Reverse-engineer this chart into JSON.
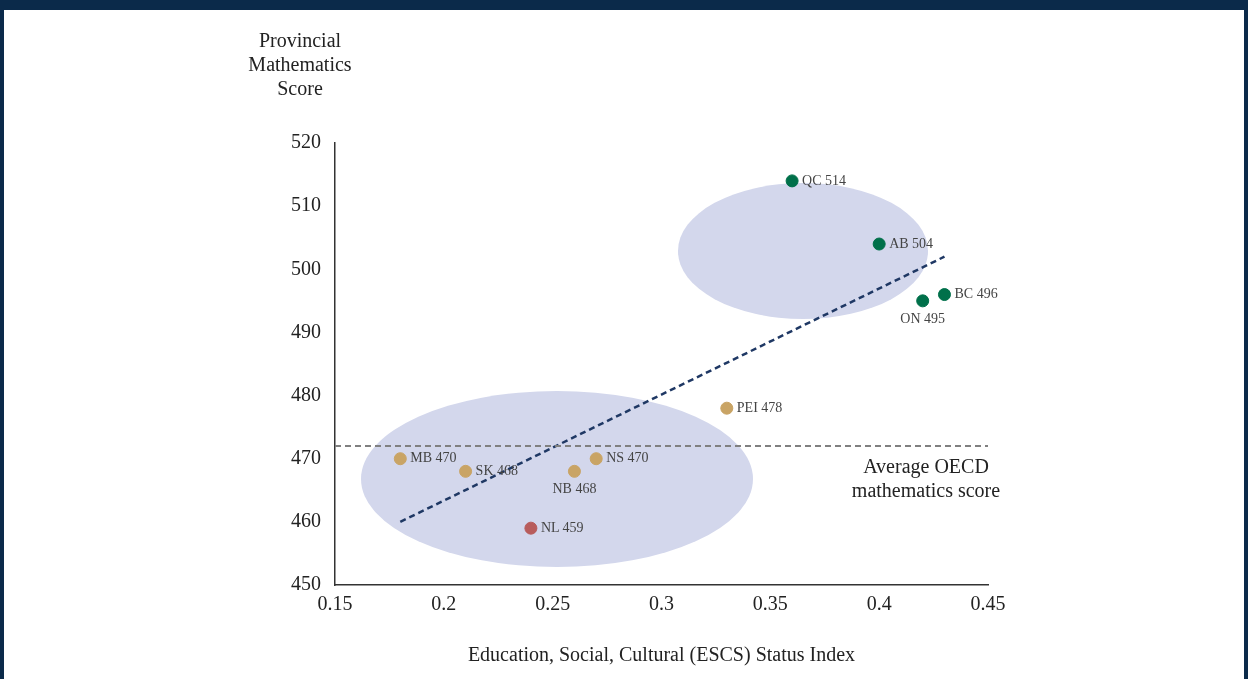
{
  "chart_data": {
    "type": "scatter",
    "xlabel": "Education, Social, Cultural (ESCS) Status Index",
    "ylabel": "Provincial Mathematics Score",
    "x": [
      0.36,
      0.4,
      0.43,
      0.42,
      0.33,
      0.27,
      0.26,
      0.21,
      0.18,
      0.24
    ],
    "values": [
      514,
      504,
      496,
      495,
      478,
      470,
      468,
      468,
      470,
      459
    ],
    "colors": [
      "#00704a",
      "#00704a",
      "#00704a",
      "#00704a",
      "#c9a465",
      "#c9a465",
      "#c9a465",
      "#c9a465",
      "#c9a465",
      "#b85c5c"
    ],
    "series": [
      {
        "type": "line",
        "x": [
          0.18,
          0.43
        ],
        "values": [
          460,
          502
        ],
        "color": "#1f3864",
        "line_style": "dashed",
        "marker": "none"
      }
    ],
    "annotations": [
      {
        "text": "QC 514",
        "x": 0.36,
        "y": 514
      },
      {
        "text": "AB 504",
        "x": 0.4,
        "y": 504
      },
      {
        "text": "BC 496",
        "x": 0.43,
        "y": 496
      },
      {
        "text": "ON 495",
        "x": 0.42,
        "y": 495
      },
      {
        "text": "PEI 478",
        "x": 0.33,
        "y": 478
      },
      {
        "text": "NS 470",
        "x": 0.27,
        "y": 470
      },
      {
        "text": "NB 468",
        "x": 0.26,
        "y": 468
      },
      {
        "text": "SK 468",
        "x": 0.21,
        "y": 468
      },
      {
        "text": "MB 470",
        "x": 0.18,
        "y": 470
      },
      {
        "text": "NL 459",
        "x": 0.24,
        "y": 459
      }
    ],
    "ref_lines": [
      {
        "axis": "y",
        "value": 472,
        "label": "Average OECD mathematics score",
        "color": "#808080",
        "line_style": "dashed"
      }
    ],
    "xlim": [
      0.15,
      0.45
    ],
    "xticks": [
      0.15,
      0.2,
      0.25,
      0.3,
      0.35,
      0.4,
      0.45
    ],
    "ylim": [
      450,
      520
    ],
    "yticks": [
      450,
      460,
      470,
      480,
      490,
      500,
      510,
      520
    ],
    "marker": "circle",
    "grid": false,
    "legend": false
  }
}
